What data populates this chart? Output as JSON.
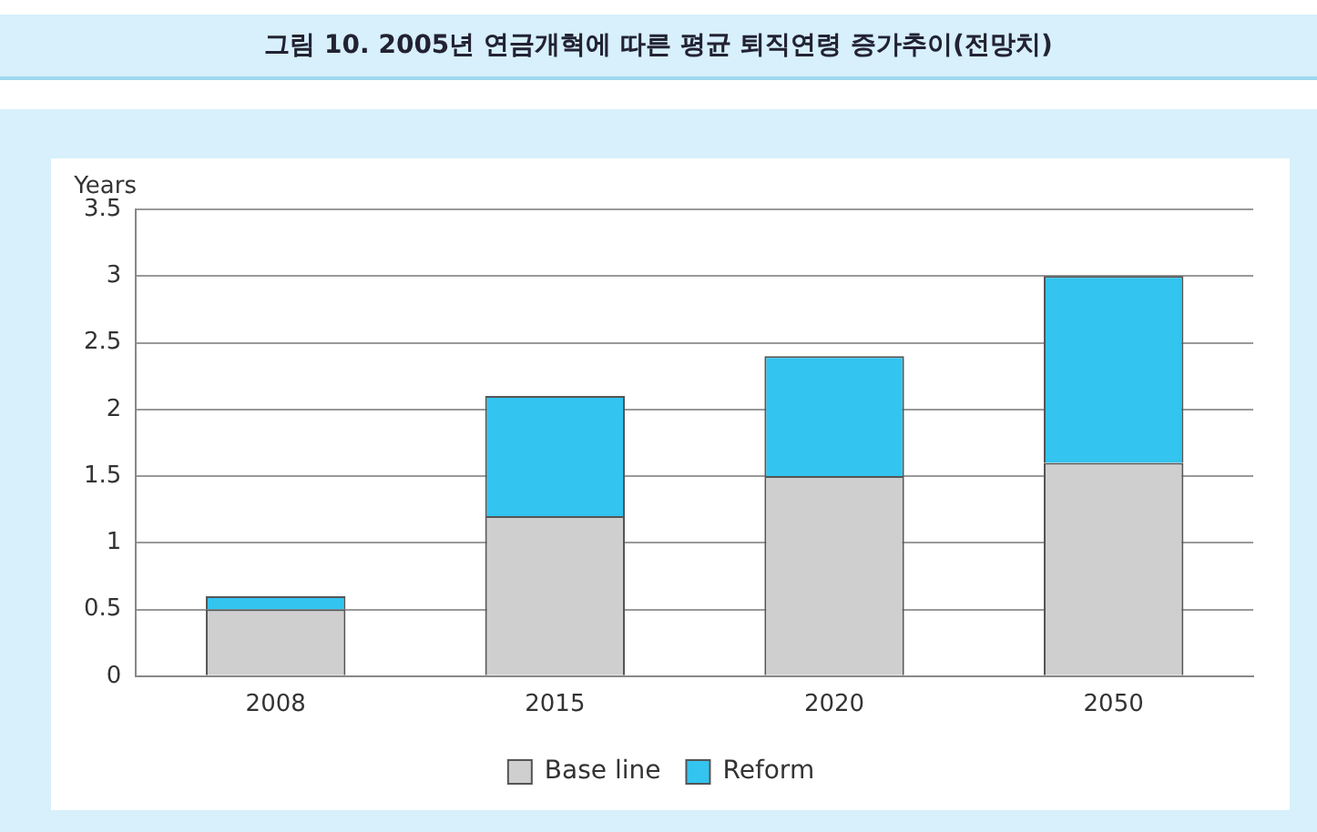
{
  "chart_data": {
    "type": "bar",
    "title": "그림 10. 2005년 연금개혁에 따른 평균 퇴직연령 증가추이(전망치)",
    "ylabel": "Years",
    "categories": [
      "2008",
      "2015",
      "2020",
      "2050"
    ],
    "stacked": true,
    "series": [
      {
        "name": "Base line",
        "color": "#cfcfcf",
        "values": [
          0.5,
          1.2,
          1.5,
          1.6
        ]
      },
      {
        "name": "Reform",
        "color": "#33c4ef",
        "values": [
          0.1,
          0.9,
          0.9,
          1.4
        ]
      }
    ],
    "ylim": [
      0,
      3.5
    ],
    "yticks": [
      0,
      0.5,
      1,
      1.5,
      2,
      2.5,
      3,
      3.5
    ],
    "grid": "y",
    "legend": "bottom"
  }
}
